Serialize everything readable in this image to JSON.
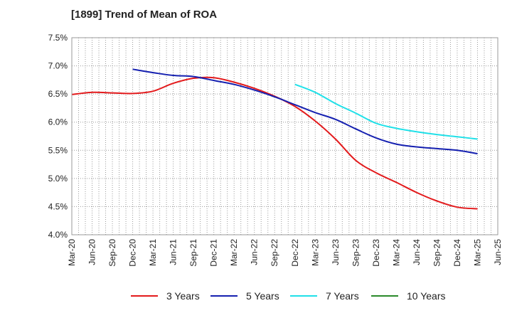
{
  "chart_data": {
    "type": "line",
    "title": "[1899]  Trend of Mean of ROA",
    "xlabel": "",
    "ylabel": "",
    "ylim": [
      4.0,
      7.5
    ],
    "y_ticks": [
      "4.0%",
      "4.5%",
      "5.0%",
      "5.5%",
      "6.0%",
      "6.5%",
      "7.0%",
      "7.5%"
    ],
    "y_tick_values": [
      4.0,
      4.5,
      5.0,
      5.5,
      6.0,
      6.5,
      7.0,
      7.5
    ],
    "categories": [
      "Mar-20",
      "Jun-20",
      "Sep-20",
      "Dec-20",
      "Mar-21",
      "Jun-21",
      "Sep-21",
      "Dec-21",
      "Mar-22",
      "Jun-22",
      "Sep-22",
      "Dec-22",
      "Mar-23",
      "Jun-23",
      "Sep-23",
      "Dec-23",
      "Mar-24",
      "Jun-24",
      "Sep-24",
      "Dec-24",
      "Mar-25",
      "Jun-25"
    ],
    "grid": true,
    "legend_position": "bottom",
    "series": [
      {
        "name": "3 Years",
        "color": "#e31a1c",
        "values": [
          6.49,
          6.53,
          6.52,
          6.51,
          6.55,
          6.69,
          6.78,
          6.79,
          6.71,
          6.6,
          6.46,
          6.28,
          6.02,
          5.7,
          5.32,
          5.1,
          4.93,
          4.75,
          4.6,
          4.49,
          4.46,
          null
        ]
      },
      {
        "name": "5 Years",
        "color": "#1520b0",
        "values": [
          null,
          null,
          null,
          6.94,
          6.88,
          6.83,
          6.81,
          6.74,
          6.67,
          6.57,
          6.45,
          6.31,
          6.17,
          6.05,
          5.88,
          5.72,
          5.61,
          5.56,
          5.53,
          5.5,
          5.44,
          null
        ]
      },
      {
        "name": "7 Years",
        "color": "#20e0e8",
        "values": [
          null,
          null,
          null,
          null,
          null,
          null,
          null,
          null,
          null,
          null,
          null,
          6.67,
          6.53,
          6.33,
          6.16,
          5.98,
          5.89,
          5.83,
          5.78,
          5.74,
          5.7,
          null
        ]
      },
      {
        "name": "10 Years",
        "color": "#2a8a2a",
        "values": [
          null,
          null,
          null,
          null,
          null,
          null,
          null,
          null,
          null,
          null,
          null,
          null,
          null,
          null,
          null,
          null,
          null,
          null,
          null,
          null,
          null,
          null
        ]
      }
    ]
  }
}
